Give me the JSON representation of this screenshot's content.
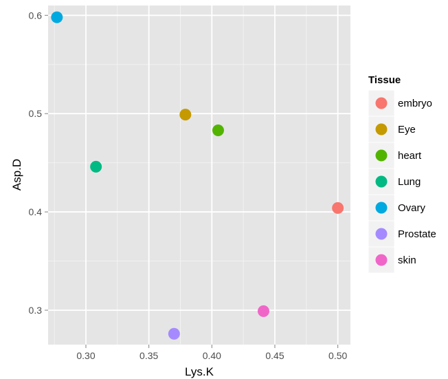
{
  "chart_data": {
    "type": "scatter",
    "xlabel": "Lys.K",
    "ylabel": "Asp.D",
    "xlim": [
      0.27,
      0.51
    ],
    "ylim": [
      0.265,
      0.61
    ],
    "x_ticks": [
      0.3,
      0.35,
      0.4,
      0.45,
      0.5
    ],
    "x_tick_labels": [
      "0.30",
      "0.35",
      "0.40",
      "0.45",
      "0.50"
    ],
    "y_ticks": [
      0.3,
      0.4,
      0.5,
      0.6
    ],
    "y_tick_labels": [
      "0.3",
      "0.4",
      "0.5",
      "0.6"
    ],
    "grid": true,
    "legend": {
      "title": "Tissue",
      "placement": "right"
    },
    "series": [
      {
        "name": "embryo",
        "color": "#F8766D",
        "x": 0.5,
        "y": 0.404
      },
      {
        "name": "Eye",
        "color": "#C49A00",
        "x": 0.379,
        "y": 0.499
      },
      {
        "name": "heart",
        "color": "#53B400",
        "x": 0.405,
        "y": 0.483
      },
      {
        "name": "Lung",
        "color": "#00B983",
        "x": 0.308,
        "y": 0.446
      },
      {
        "name": "Ovary",
        "color": "#00A9E0",
        "x": 0.277,
        "y": 0.598
      },
      {
        "name": "Prostate",
        "color": "#A58AFF",
        "x": 0.37,
        "y": 0.276
      },
      {
        "name": "skin",
        "color": "#F066C8",
        "x": 0.441,
        "y": 0.299
      }
    ]
  }
}
